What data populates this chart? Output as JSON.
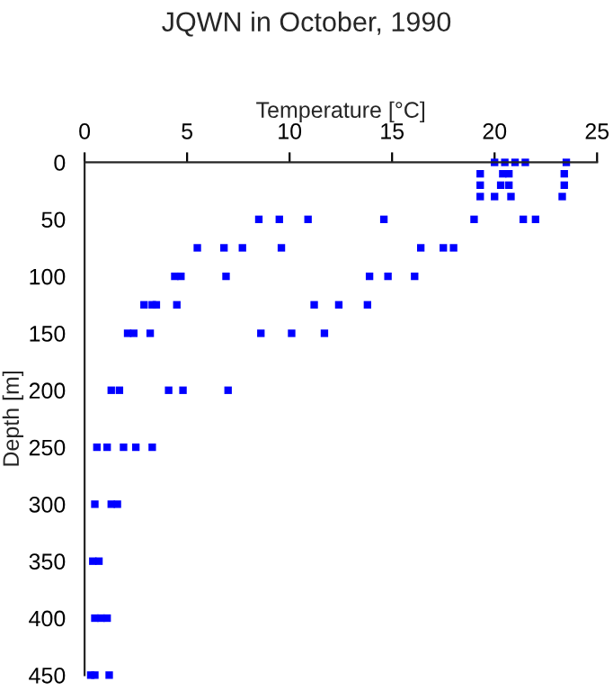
{
  "chart_data": {
    "type": "scatter",
    "title": "JQWN in October, 1990",
    "xlabel": "Temperature [°C]",
    "ylabel": "Depth [m]",
    "xlim": [
      0,
      25
    ],
    "xticks": [
      0,
      5,
      10,
      15,
      20,
      25
    ],
    "ylim": [
      450,
      0
    ],
    "yticks": [
      0,
      50,
      100,
      150,
      200,
      250,
      300,
      350,
      400,
      450
    ],
    "marker": "square",
    "grid": false,
    "series": [
      {
        "color": "#0000ff",
        "x": [
          20.0,
          20.5,
          21.0,
          21.5,
          23.5,
          19.3,
          20.4,
          20.7,
          23.4,
          19.3,
          20.3,
          20.7,
          23.4,
          19.3,
          20.0,
          20.8,
          23.3,
          8.5,
          9.5,
          10.9,
          14.6,
          19.0,
          21.4,
          22.0,
          5.5,
          6.8,
          7.7,
          9.6,
          16.4,
          17.5,
          18.0,
          4.4,
          4.7,
          6.9,
          13.9,
          14.8,
          16.1,
          2.9,
          3.3,
          3.5,
          4.5,
          11.2,
          12.4,
          13.8,
          2.1,
          2.4,
          3.2,
          8.6,
          10.1,
          11.7,
          1.3,
          1.7,
          4.1,
          4.8,
          7.0,
          0.6,
          1.1,
          1.9,
          2.5,
          3.3,
          0.5,
          1.3,
          1.6,
          0.4,
          0.7,
          0.5,
          0.8,
          1.1,
          0.3,
          0.5,
          1.2
        ],
        "values": [
          0,
          0,
          0,
          0,
          0,
          10,
          10,
          10,
          10,
          20,
          20,
          20,
          20,
          30,
          30,
          30,
          30,
          50,
          50,
          50,
          50,
          50,
          50,
          50,
          75,
          75,
          75,
          75,
          75,
          75,
          75,
          100,
          100,
          100,
          100,
          100,
          100,
          125,
          125,
          125,
          125,
          125,
          125,
          125,
          150,
          150,
          150,
          150,
          150,
          150,
          200,
          200,
          200,
          200,
          200,
          250,
          250,
          250,
          250,
          250,
          300,
          300,
          300,
          350,
          350,
          400,
          400,
          400,
          450,
          450,
          450
        ]
      }
    ]
  }
}
